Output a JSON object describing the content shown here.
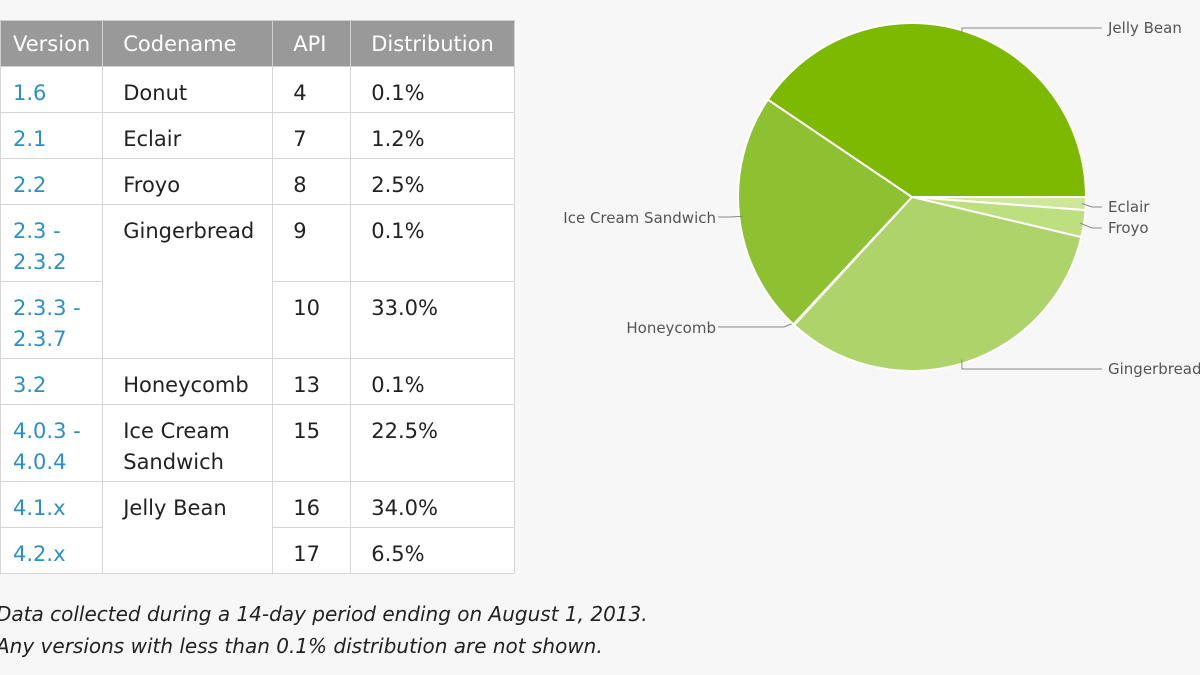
{
  "table": {
    "headers": [
      "Version",
      "Codename",
      "API",
      "Distribution"
    ],
    "rows": [
      {
        "version": "1.6",
        "codename": "Donut",
        "api": "4",
        "distribution": "0.1%"
      },
      {
        "version": "2.1",
        "codename": "Eclair",
        "api": "7",
        "distribution": "1.2%"
      },
      {
        "version": "2.2",
        "codename": "Froyo",
        "api": "8",
        "distribution": "2.5%"
      },
      {
        "version": "2.3 -\n2.3.2",
        "codename": "Gingerbread",
        "api": "9",
        "distribution": "0.1%"
      },
      {
        "version": "2.3.3 -\n2.3.7",
        "codename": "",
        "api": "10",
        "distribution": "33.0%"
      },
      {
        "version": "3.2",
        "codename": "Honeycomb",
        "api": "13",
        "distribution": "0.1%"
      },
      {
        "version": "4.0.3 -\n4.0.4",
        "codename": "Ice Cream\nSandwich",
        "api": "15",
        "distribution": "22.5%"
      },
      {
        "version": "4.1.x",
        "codename": "Jelly Bean",
        "api": "16",
        "distribution": "34.0%"
      },
      {
        "version": "4.2.x",
        "codename": "",
        "api": "17",
        "distribution": "6.5%"
      }
    ]
  },
  "notes": [
    "Data collected during a 14-day period ending on August 1, 2013.",
    "Any versions with less than 0.1% distribution are not shown."
  ],
  "chart_data": {
    "type": "pie",
    "title": "",
    "slices": [
      {
        "label": "Eclair",
        "value": 1.2,
        "color": "#cde89a"
      },
      {
        "label": "Froyo",
        "value": 2.5,
        "color": "#bddf80"
      },
      {
        "label": "Gingerbread",
        "value": 33.1,
        "color": "#aed36b"
      },
      {
        "label": "Honeycomb",
        "value": 0.1,
        "color": "#9acb48"
      },
      {
        "label": "Ice Cream Sandwich",
        "value": 22.5,
        "color": "#8ec132"
      },
      {
        "label": "Jelly Bean",
        "value": 40.5,
        "color": "#7cb900"
      }
    ]
  }
}
